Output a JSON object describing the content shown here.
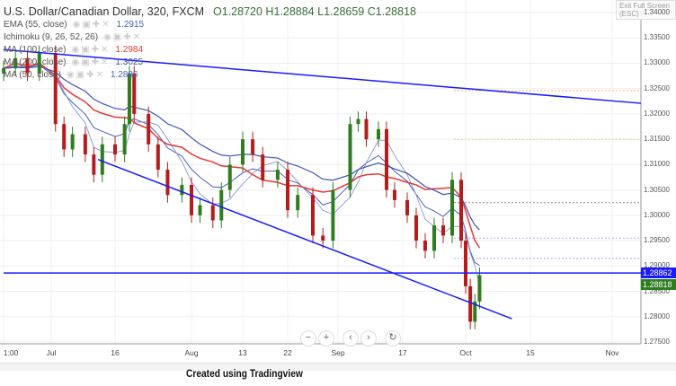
{
  "header": {
    "symbol": "U.S. Dollar/Canadian Dollar, 320, FXCM",
    "open": "O1.28720",
    "high": "H1.28884",
    "low": "L1.28659",
    "close": "C1.28818",
    "exit_label": "Exit Full Screen (ESC)"
  },
  "indicators": [
    {
      "label": "EMA (55, close)",
      "value": "1.2915",
      "color": "#4a5fc1"
    },
    {
      "label": "Ichimoku (9, 26, 52, 26)",
      "value": "",
      "color": "#4a5fc1"
    },
    {
      "label": "MA (100, close)",
      "value": "1.2984",
      "color": "#e53935"
    },
    {
      "label": "MA (200, close)",
      "value": "1.3025",
      "color": "#3f51b5"
    },
    {
      "label": "MA (50, close)",
      "value": "1.2886",
      "color": "#4a5fc1"
    }
  ],
  "price_tags": {
    "line": "1.28862",
    "last": "1.28818",
    "line_color": "#1a1aff",
    "last_color": "#2e7d1e"
  },
  "caption": "Created using Tradingview",
  "nav": {
    "zoom_out": "−",
    "zoom_in": "+",
    "left": "‹",
    "right": "›",
    "reset": "↻"
  },
  "chart_data": {
    "type": "candlestick",
    "yticks": [
      "1.34000",
      "1.33500",
      "1.33000",
      "1.32500",
      "1.32000",
      "1.31500",
      "1.31000",
      "1.30500",
      "1.30000",
      "1.29500",
      "1.29000",
      "1.28500",
      "1.28000",
      "1.27500"
    ],
    "ylim": [
      1.2748,
      1.3425
    ],
    "xticks": [
      {
        "label": "1:00",
        "date": "2018-06-27"
      },
      {
        "label": "Jul",
        "date": "2018-07-01"
      },
      {
        "label": "16",
        "date": "2018-07-16"
      },
      {
        "label": "Aug",
        "date": "2018-08-01"
      },
      {
        "label": "13",
        "date": "2018-08-13"
      },
      {
        "label": "22",
        "date": "2018-08-22"
      },
      {
        "label": "Sep",
        "date": "2018-09-01"
      },
      {
        "label": "17",
        "date": "2018-09-17"
      },
      {
        "label": "Oct",
        "date": "2018-10-01"
      },
      {
        "label": "15",
        "date": "2018-10-15"
      },
      {
        "label": "Nov",
        "date": "2018-11-01"
      }
    ],
    "closes": [
      [
        "2018-06-27",
        1.329
      ],
      [
        "2018-06-28",
        1.331
      ],
      [
        "2018-06-29",
        1.328
      ],
      [
        "2018-06-30",
        1.332
      ],
      [
        "2018-07-02",
        1.318
      ],
      [
        "2018-07-04",
        1.313
      ],
      [
        "2018-07-06",
        1.316
      ],
      [
        "2018-07-09",
        1.312
      ],
      [
        "2018-07-11",
        1.308
      ],
      [
        "2018-07-13",
        1.314
      ],
      [
        "2018-07-16",
        1.312
      ],
      [
        "2018-07-18",
        1.318
      ],
      [
        "2018-07-19",
        1.328
      ],
      [
        "2018-07-20",
        1.32
      ],
      [
        "2018-07-23",
        1.314
      ],
      [
        "2018-07-25",
        1.309
      ],
      [
        "2018-07-27",
        1.304
      ],
      [
        "2018-07-30",
        1.306
      ],
      [
        "2018-08-01",
        1.3
      ],
      [
        "2018-08-03",
        1.302
      ],
      [
        "2018-08-06",
        1.299
      ],
      [
        "2018-08-08",
        1.305
      ],
      [
        "2018-08-10",
        1.31
      ],
      [
        "2018-08-13",
        1.315
      ],
      [
        "2018-08-15",
        1.312
      ],
      [
        "2018-08-17",
        1.307
      ],
      [
        "2018-08-20",
        1.309
      ],
      [
        "2018-08-22",
        1.301
      ],
      [
        "2018-08-24",
        1.304
      ],
      [
        "2018-08-27",
        1.296
      ],
      [
        "2018-08-29",
        1.295
      ],
      [
        "2018-08-31",
        1.305
      ],
      [
        "2018-09-04",
        1.318
      ],
      [
        "2018-09-06",
        1.319
      ],
      [
        "2018-09-08",
        1.315
      ],
      [
        "2018-09-11",
        1.317
      ],
      [
        "2018-09-13",
        1.305
      ],
      [
        "2018-09-15",
        1.303
      ],
      [
        "2018-09-18",
        1.3
      ],
      [
        "2018-09-20",
        1.295
      ],
      [
        "2018-09-22",
        1.293
      ],
      [
        "2018-09-24",
        1.298
      ],
      [
        "2018-09-26",
        1.296
      ],
      [
        "2018-09-28",
        1.307
      ],
      [
        "2018-09-30",
        1.295
      ],
      [
        "2018-10-01",
        1.286
      ],
      [
        "2018-10-02",
        1.279
      ],
      [
        "2018-10-03",
        1.283
      ],
      [
        "2018-10-04",
        1.2882
      ]
    ],
    "trendlines": [
      {
        "from": [
          "2018-06-27",
          1.3327
        ],
        "to": [
          "2018-11-08",
          1.3221
        ],
        "color": "#1a1aff"
      },
      {
        "from": [
          "2018-07-12",
          1.311
        ],
        "to": [
          "2018-10-11",
          1.2796
        ],
        "color": "#1a1aff"
      },
      {
        "from": [
          "2018-06-27",
          1.28862
        ],
        "to": [
          "2018-11-08",
          1.28862
        ],
        "color": "#1a1aff"
      }
    ],
    "level_lines": [
      {
        "price": 1.3246,
        "color": "#f4b183"
      },
      {
        "price": 1.315,
        "color": "#d6d68a"
      },
      {
        "price": 1.3025,
        "color": "#888888"
      },
      {
        "price": 1.2955,
        "color": "#aab4e0"
      },
      {
        "price": 1.2915,
        "color": "#b0a0f0"
      },
      {
        "price": 1.2886,
        "color": "#8080ff"
      }
    ],
    "colors": {
      "up": "#2e7d1e",
      "down": "#b71c1c"
    }
  }
}
